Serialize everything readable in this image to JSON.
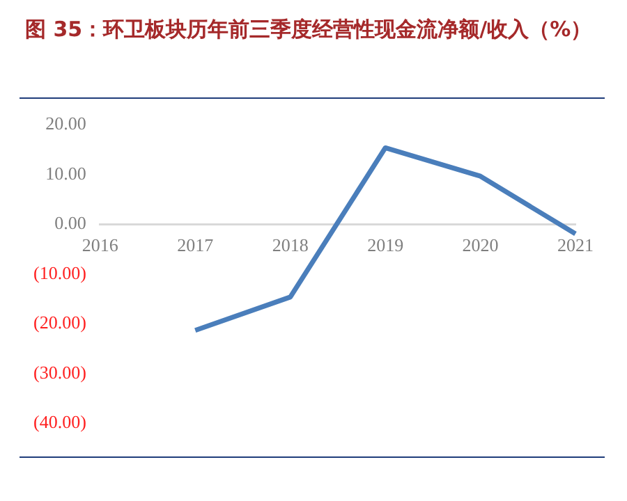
{
  "chart_data": {
    "type": "line",
    "title": "图 35：环卫板块历年前三季度经营性现金流净额/收入（%）",
    "categories": [
      "2016",
      "2017",
      "2018",
      "2019",
      "2020",
      "2021"
    ],
    "series": [
      {
        "color": "#4a7ebb",
        "values": [
          null,
          -21.3,
          -14.6,
          15.4,
          9.7,
          -1.9
        ]
      }
    ],
    "ylim": [
      -40,
      20
    ],
    "yticks": [
      {
        "value": 20,
        "label": "20.00"
      },
      {
        "value": 10,
        "label": "10.00"
      },
      {
        "value": 0,
        "label": "0.00"
      },
      {
        "value": -10,
        "label": "(10.00)"
      },
      {
        "value": -20,
        "label": "(20.00)"
      },
      {
        "value": -30,
        "label": "(30.00)"
      },
      {
        "value": -40,
        "label": "(40.00)"
      }
    ],
    "grid": false,
    "legend": false,
    "marker": "none",
    "line_style": "solid"
  }
}
